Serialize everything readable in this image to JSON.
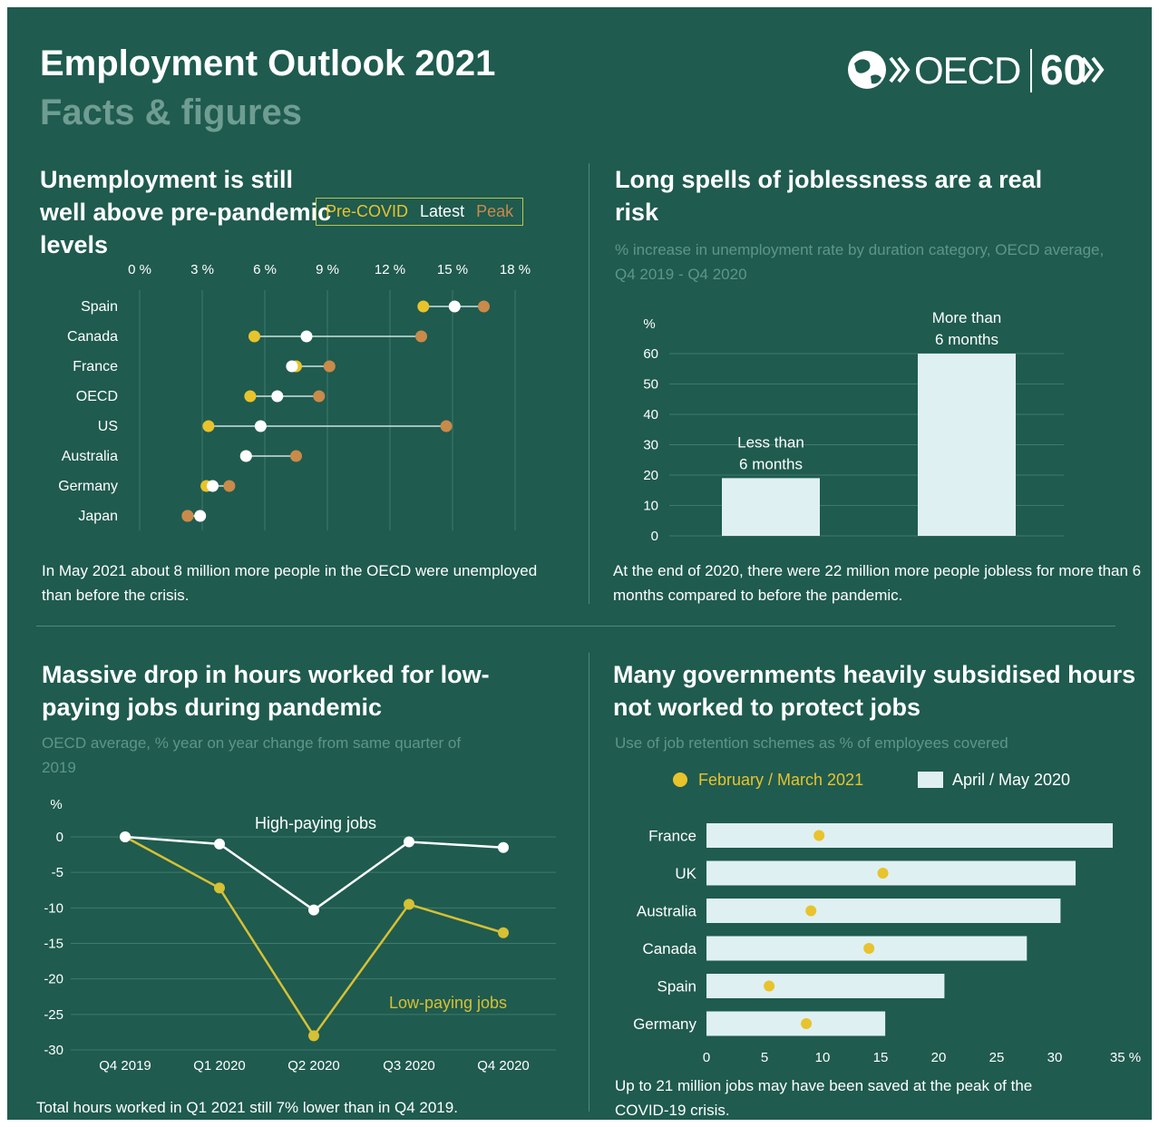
{
  "header": {
    "title": "Employment Outlook 2021",
    "subtitle": "Facts & figures",
    "logo_text": "OECD",
    "logo_60": "60"
  },
  "colors": {
    "background": "#1f5b4f",
    "precovid": "#e8c32c",
    "latest": "#ffffff",
    "peak": "#c98a4a",
    "bar": "#dff0f3",
    "low": "#d6c034",
    "muted": "#5f9588"
  },
  "sections": {
    "s1": {
      "title": "Unemployment is still well above pre-pandemic levels",
      "legend": {
        "precovid": "Pre-COVID",
        "latest": "Latest",
        "peak": "Peak"
      },
      "footnote": "In May 2021 about 8 million more people in the OECD were unemployed than before the crisis."
    },
    "s2": {
      "title": "Long spells of joblessness are a real risk",
      "subtitle": "% increase in unemployment rate by duration category, OECD average, Q4 2019 - Q4 2020",
      "footnote": "At the end of 2020, there were 22 million more people jobless for more than 6 months compared to before the pandemic."
    },
    "s3": {
      "title": "Massive drop in hours worked for low-paying jobs during pandemic",
      "subtitle": "OECD average, % year on year change from same quarter of 2019",
      "footnote": "Total hours worked in Q1 2021 still 7% lower than in Q4 2019."
    },
    "s4": {
      "title": "Many governments heavily subsidised hours not worked to protect jobs",
      "subtitle": "Use of job retention schemes as % of employees covered",
      "legend": {
        "dot": "February / March 2021",
        "bar": "April / May 2020"
      },
      "footnote": "Up to 21 million jobs may have been saved at the peak of the COVID-19 crisis."
    }
  },
  "chart_data": [
    {
      "type": "dumbbell",
      "title": "Unemployment is still well above pre-pandemic levels",
      "xlim": [
        0,
        18
      ],
      "x_ticks": [
        "0 %",
        "3 %",
        "6 %",
        "9 %",
        "12 %",
        "15 %",
        "18 %"
      ],
      "categories": [
        "Spain",
        "Canada",
        "France",
        "OECD",
        "US",
        "Australia",
        "Germany",
        "Japan"
      ],
      "series": [
        {
          "name": "Pre-COVID",
          "values": [
            13.6,
            5.5,
            7.5,
            5.3,
            3.3,
            5.1,
            3.2,
            2.3
          ]
        },
        {
          "name": "Latest",
          "values": [
            15.1,
            8.0,
            7.3,
            6.6,
            5.8,
            5.1,
            3.5,
            2.9
          ]
        },
        {
          "name": "Peak",
          "values": [
            16.5,
            13.5,
            9.1,
            8.6,
            14.7,
            7.5,
            4.3,
            2.3
          ]
        }
      ],
      "grid": true
    },
    {
      "type": "bar",
      "title": "Long spells of joblessness are a real risk",
      "ylabel": "%",
      "ylim": [
        0,
        60
      ],
      "y_ticks": [
        "0",
        "10",
        "20",
        "30",
        "40",
        "50",
        "60"
      ],
      "categories": [
        "Less than 6 months",
        "More than 6 months"
      ],
      "category_lines": [
        [
          "Less than",
          "6 months"
        ],
        [
          "More than",
          "6 months"
        ]
      ],
      "values": [
        19,
        60
      ]
    },
    {
      "type": "line",
      "title": "Massive drop in hours worked for low-paying jobs during pandemic",
      "ylabel": "%",
      "ylim": [
        -30,
        0
      ],
      "y_ticks": [
        "0",
        "-5",
        "-10",
        "-15",
        "-20",
        "-25",
        "-30"
      ],
      "categories": [
        "Q4 2019",
        "Q1 2020",
        "Q2 2020",
        "Q3 2020",
        "Q4 2020"
      ],
      "series": [
        {
          "name": "High-paying jobs",
          "values": [
            0,
            -1,
            -10.3,
            -0.7,
            -1.5
          ]
        },
        {
          "name": "Low-paying jobs",
          "values": [
            0,
            -7.2,
            -28,
            -9.5,
            -13.5
          ]
        }
      ]
    },
    {
      "type": "bar",
      "orientation": "horizontal",
      "title": "Many governments heavily subsidised hours not worked to protect jobs",
      "xlim": [
        0,
        35
      ],
      "x_ticks": [
        "0",
        "5",
        "10",
        "15",
        "20",
        "25",
        "30",
        "35 %"
      ],
      "categories": [
        "France",
        "UK",
        "Australia",
        "Canada",
        "Spain",
        "Germany"
      ],
      "series": [
        {
          "name": "April / May 2020",
          "values": [
            35,
            31.8,
            30.5,
            27.6,
            20.5,
            15.4
          ]
        },
        {
          "name": "February / March 2021",
          "values": [
            9.7,
            15.2,
            9,
            14,
            5.4,
            8.6
          ]
        }
      ]
    }
  ]
}
